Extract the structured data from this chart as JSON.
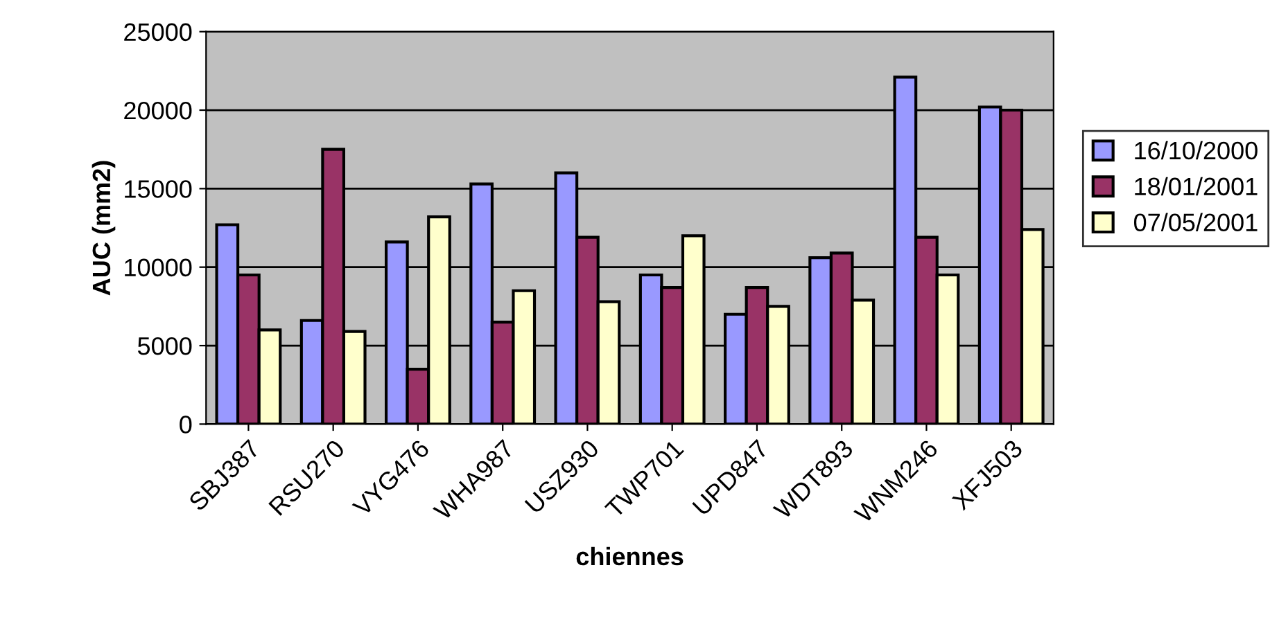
{
  "chart_data": {
    "type": "bar",
    "xlabel": "chiennes",
    "ylabel": "AUC (mm2)",
    "categories": [
      "SBJ387",
      "RSU270",
      "VYG476",
      "WHA987",
      "USZ930",
      "TWP701",
      "UPD847",
      "WDT893",
      "WNM246",
      "XFJ503"
    ],
    "series": [
      {
        "name": "16/10/2000",
        "color": "#9999ff",
        "values": [
          12700,
          6600,
          11600,
          15300,
          16000,
          9500,
          7000,
          10600,
          22100,
          20200
        ]
      },
      {
        "name": "18/01/2001",
        "color": "#993366",
        "values": [
          9500,
          17500,
          3500,
          6500,
          11900,
          8700,
          8700,
          10900,
          11900,
          20000
        ]
      },
      {
        "name": "07/05/2001",
        "color": "#ffffcc",
        "values": [
          6000,
          5900,
          13200,
          8500,
          7800,
          12000,
          7500,
          7900,
          9500,
          12400
        ]
      }
    ],
    "ylim": [
      0,
      25000
    ],
    "yticks": [
      0,
      5000,
      10000,
      15000,
      20000,
      25000
    ],
    "grid": "y",
    "legend": "right"
  }
}
